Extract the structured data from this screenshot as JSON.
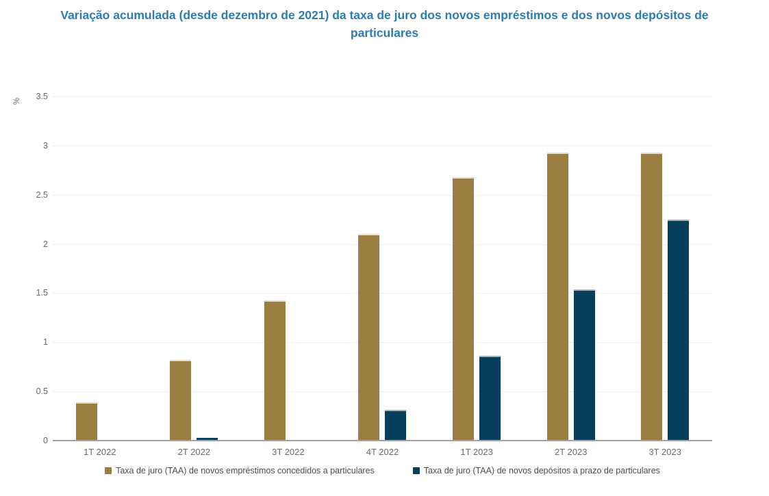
{
  "title": {
    "line1": "Variação acumulada (desde dezembro de 2021) da taxa de juro dos novos empréstimos e dos novos depósitos de",
    "line2": "particulares"
  },
  "chart_data": {
    "type": "bar",
    "title": "Variação acumulada (desde dezembro de 2021) da taxa de juro dos novos empréstimos e dos novos depósitos de particulares",
    "categories": [
      "1T 2022",
      "2T 2022",
      "3T 2022",
      "4T 2022",
      "1T 2023",
      "2T 2023",
      "3T 2023"
    ],
    "series": [
      {
        "name": "Taxa de juro (TAA) de novos empréstimos concedidos a particulares",
        "key": "emprestimos",
        "color": "#9b7d42",
        "edge_color": "#e7dcc3",
        "values": [
          0.39,
          0.82,
          1.43,
          2.1,
          2.68,
          2.93,
          2.93
        ]
      },
      {
        "name": "Taxa de juro (TAA) de novos depósitos a prazo de particulares",
        "key": "depositos",
        "color": "#063e5b",
        "edge_color": "#9fb6c2",
        "values": [
          0.0,
          0.03,
          0.01,
          0.31,
          0.86,
          1.54,
          2.25
        ]
      }
    ],
    "xlabel": "",
    "ylabel": "%",
    "ylim": [
      0,
      3.5
    ],
    "ytick_labels": [
      "3.5",
      "3",
      "2.5",
      "2",
      "1.5",
      "1",
      "0.5",
      "0"
    ],
    "grid": true,
    "legend_position": "bottom"
  },
  "colors": {
    "title_text": "#2c7bb2",
    "gridline": "#ededed",
    "axis_line": "#a2a2a2",
    "tick_text": "#666666",
    "legend_text": "#4d4d4d",
    "background": "#ffffff"
  }
}
